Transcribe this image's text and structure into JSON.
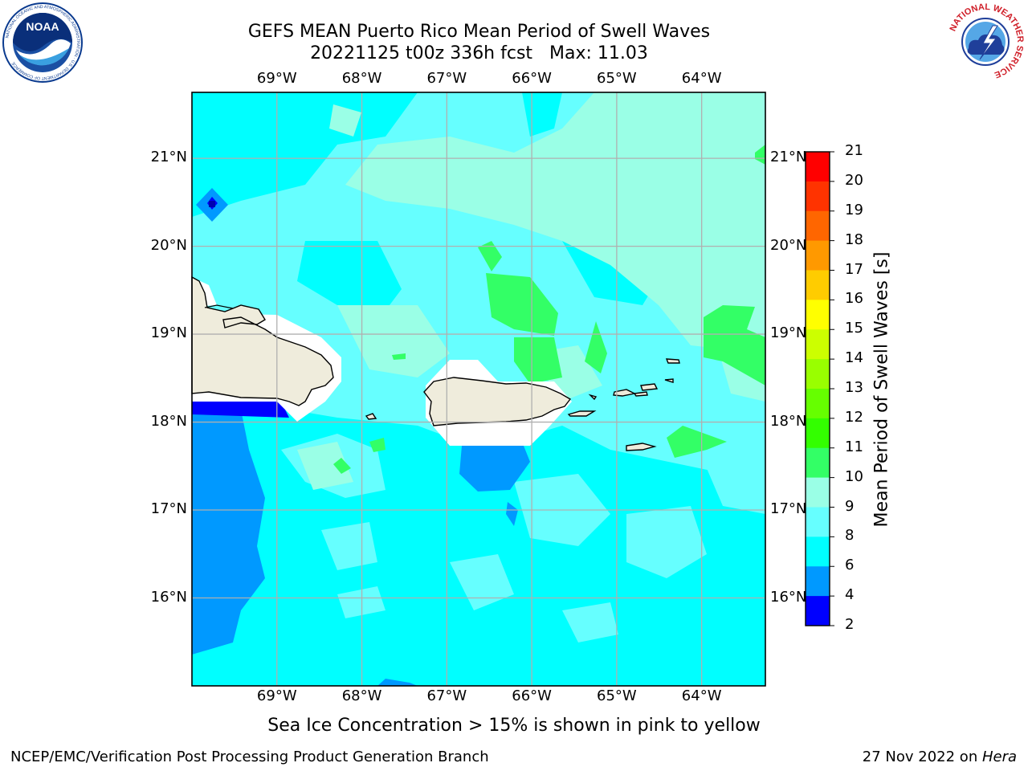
{
  "title": {
    "line1": "GEFS MEAN Puerto Rico Mean Period of Swell Waves",
    "line2_date": "20221125 t00z 336h fcst",
    "line2_max": "Max: 11.03"
  },
  "logos": {
    "left": "noaa-logo",
    "left_text": "NOAA",
    "left_ring": "NATIONAL OCEANIC AND ATMOSPHERIC ADMINISTRATION · U.S. DEPARTMENT OF COMMERCE",
    "right": "nws-logo",
    "right_ring": "NATIONAL WEATHER SERVICE"
  },
  "map": {
    "lon_ticks": [
      "69°W",
      "68°W",
      "67°W",
      "66°W",
      "65°W",
      "64°W"
    ],
    "lat_ticks": [
      "21°N",
      "20°N",
      "19°N",
      "18°N",
      "17°N",
      "16°N"
    ],
    "lon_values": [
      -69,
      -68,
      -67,
      -66,
      -65,
      -64
    ],
    "lat_values": [
      21,
      20,
      19,
      18,
      17,
      16
    ],
    "extent": {
      "lon_min": -70.0,
      "lon_max": -63.25,
      "lat_min": 15.0,
      "lat_max": 21.75
    },
    "gridlines": true,
    "land_color": "#EFECDC",
    "coastline_color": "#000000"
  },
  "colorbar": {
    "title": "Mean Period of Swell Waves [s]",
    "levels": [
      "21",
      "20",
      "19",
      "18",
      "17",
      "16",
      "15",
      "14",
      "13",
      "12",
      "11",
      "10",
      "9",
      "8",
      "6",
      "4",
      "2"
    ],
    "colors": [
      "#FF0000",
      "#FF3300",
      "#FF6600",
      "#FF9900",
      "#FFCC00",
      "#FFFF00",
      "#CCFF00",
      "#99FF00",
      "#66FF00",
      "#33FF00",
      "#33FF66",
      "#9AFFE6",
      "#66FFFF",
      "#00FFFF",
      "#0099FF",
      "#0000FF"
    ]
  },
  "note": "Sea Ice Concentration > 15% is shown in pink to yellow",
  "footer": {
    "left": "NCEP/EMC/Verification Post Processing Product Generation Branch",
    "right_date": "27 Nov 2022 on ",
    "right_host": "Hera"
  }
}
